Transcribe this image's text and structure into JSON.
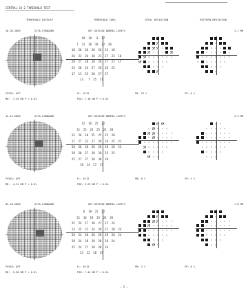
{
  "document": {
    "title": "CENTRAL 24-2 THRESHOLD TEST",
    "page_number": "5"
  },
  "panels": [
    {
      "date": "10-30-2005",
      "strategy": "SITA-STANDARD",
      "gth": "GHT OUTSIDE NORMAL LIMITS",
      "pupil": "3.1 MM",
      "col_threshold_display": "THRESHOLD DISPLAY",
      "col_threshold_db": "THRESHOLD (DB)",
      "col_total": "TOTAL DEVIATION",
      "col_pattern": "PATTERN DEVIATION",
      "fovea": "FOVEA: OFF",
      "fl": "FL: 0/15",
      "md": "MD: -7.49 DB  P < 0.5%",
      "psd": "PSD: 7.10 DB  P < 0.5%",
      "fn": "FN: 23 %",
      "fp": "FP: 0 %",
      "grid": [
        "      18  18   8  17",
        "   7  21  18  18  22  20",
        "18  20  26  26  26  23  16",
        "26  23  26  18  21  27  22  10",
        "28  27  28  28  28  27  21  17",
        "24  20  24  27  28  26  25",
        "17  13  25  28  27  27",
        "     13   7  25  21"
      ]
    },
    {
      "date": "12-15-2005",
      "strategy": "SITA-STANDARD",
      "gth": "GHT OUTSIDE NORMAL LIMITS",
      "pupil": "3.4 MM",
      "col_threshold_display": "",
      "col_threshold_db": "",
      "col_total": "",
      "col_pattern": "",
      "fovea": "FOVEA: OFF",
      "fl": "FL: 0/15",
      "md": "MD: -4.31 DB  P < 0.5%",
      "psd": "PSD: 3.29 DB  P < 0.5%",
      "fn": "FN: 0 %",
      "fp": "FP: 4 %",
      "grid": [
        "      12  16  25  22",
        "   21  25  24  25  21  20",
        "23  26  18  25  25  25  28",
        "27  27  23  27  28  28  25  21",
        "28  26  28  28  28  28  26  23",
        "28  20  27  28  28  25  25",
        "25  27  27  28  30  28",
        "     16  24  27  27"
      ]
    },
    {
      "date": "05-18-2006",
      "strategy": "SITA-STANDARD",
      "gth": "GHT OUTSIDE NORMAL LIMITS",
      "pupil": "7.0 MM",
      "col_threshold_display": "",
      "col_threshold_db": "",
      "col_total": "",
      "col_pattern": "",
      "fovea": "FOVEA: OFF",
      "fl": "FL: 0/15",
      "md": "MD: -5.38 DB  P < 0.5%",
      "psd": "PSD: 7.44 DB  P < 0.5%",
      "fn": "FN: 3 %",
      "fp": "FP: 0 %",
      "grid": [
        "       6  18  22  22",
        "   21  16  18  23  24  26",
        "25  24  17  28  27  27  24",
        "23  25  21  24  28  27  28  24",
        "28  24  28  28  28  28  26  24",
        "28  24  28  28  28  28  24",
        "25  24  27  28  28  26",
        "     23  22  28  29"
      ]
    }
  ],
  "deviation_symbols": {
    "legend": [
      "black-square",
      "dark-check",
      "light-dot",
      "blank"
    ],
    "colors": {
      "black": "#1a1a1a",
      "dark": "#555555",
      "light": "#bdbdbd"
    }
  }
}
